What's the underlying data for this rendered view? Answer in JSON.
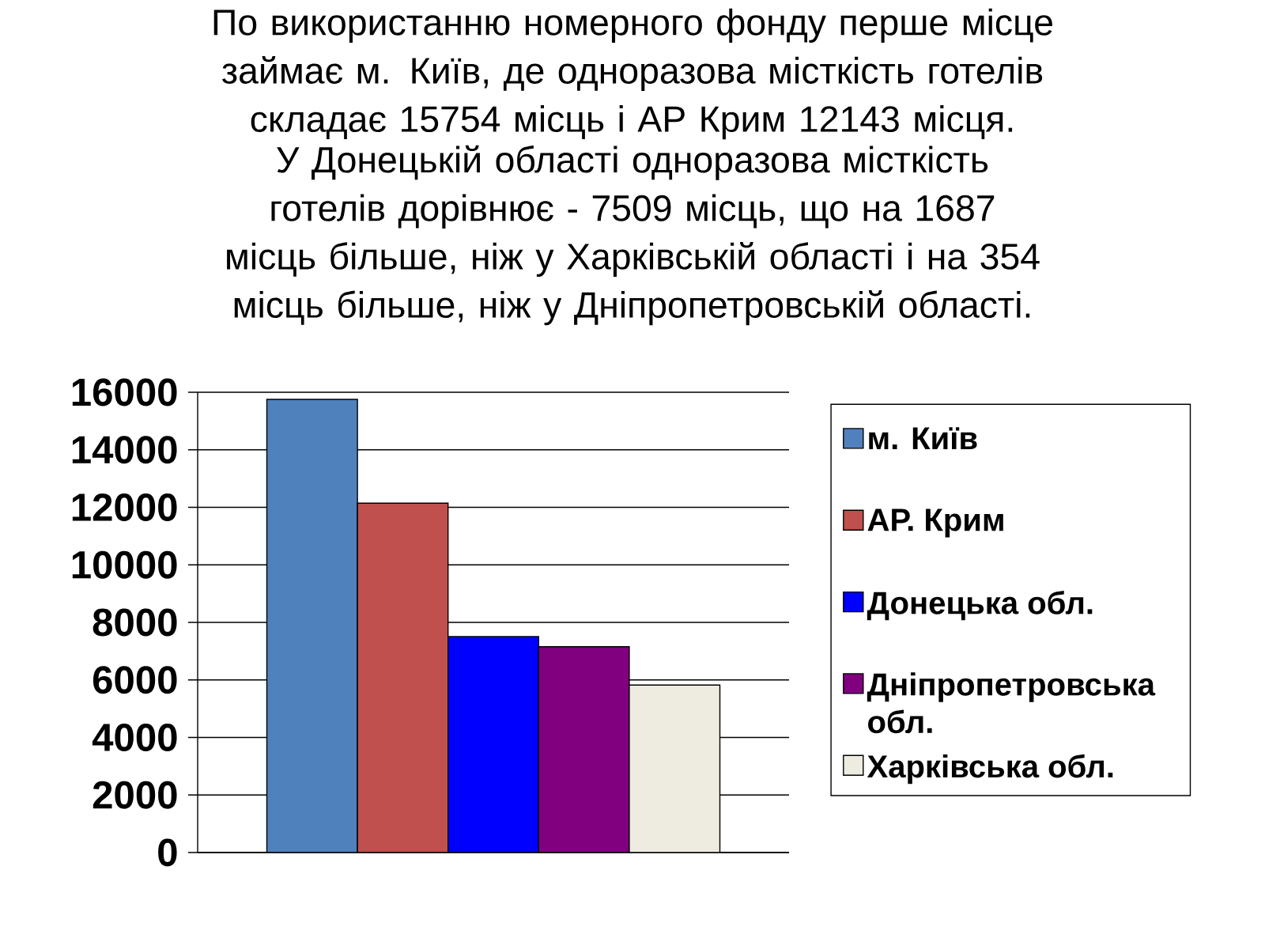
{
  "chart_data": {
    "type": "bar",
    "title": "По використанню номерного фонду перше місце займає м. Київ, де одноразова місткість готелів складає 15754 місць і АР Крим 12143 місця.",
    "subtitle": "У Донецькій області одноразова місткість готелів дорівнює - 7509 місць, що на 1687 місць більше, ніж у Харківській області і на 354 місць більше, ніж у Дніпропетровській області.",
    "categories": [
      null
    ],
    "series": [
      {
        "name": "м. Київ",
        "color": "#4f81bd",
        "values": [
          15754
        ]
      },
      {
        "name": "АР. Крим",
        "color": "#c0504d",
        "values": [
          12143
        ]
      },
      {
        "name": "Донецька обл.",
        "color": "#0000ff",
        "values": [
          7509
        ]
      },
      {
        "name": "Дніпропетровська обл.",
        "color": "#800080",
        "values": [
          7155
        ]
      },
      {
        "name": "Харківська обл.",
        "color": "#eeece1",
        "values": [
          5822
        ]
      }
    ],
    "ylim": [
      0,
      16000
    ],
    "yticks": [
      0,
      2000,
      4000,
      6000,
      8000,
      10000,
      12000,
      14000,
      16000
    ],
    "grid": "y",
    "legend": "right",
    "tick_labels": "y"
  }
}
